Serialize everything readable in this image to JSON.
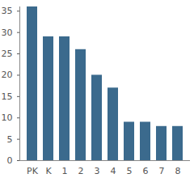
{
  "chart_data": {
    "type": "bar",
    "categories": [
      "PK",
      "K",
      "1",
      "2",
      "3",
      "4",
      "5",
      "6",
      "7",
      "8"
    ],
    "values": [
      36,
      29,
      29,
      26,
      20,
      17,
      9,
      9,
      8,
      8
    ],
    "color": "#3b6a8d",
    "ylim": [
      0,
      36
    ],
    "yticks": [
      0,
      5,
      10,
      15,
      20,
      25,
      30,
      35
    ],
    "grid": false
  }
}
